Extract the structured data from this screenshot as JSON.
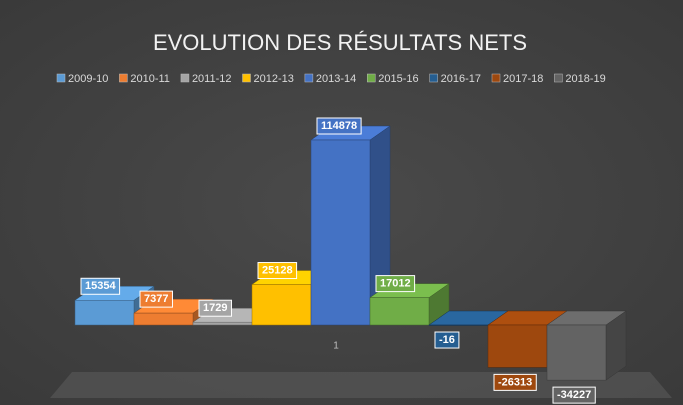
{
  "chart_data": {
    "type": "bar3d",
    "title": "EVOLUTION DES RÉSULTATS NETS",
    "categories": [
      "1"
    ],
    "series": [
      {
        "name": "2009-10",
        "color": "#5b9bd5",
        "values": [
          15354
        ]
      },
      {
        "name": "2010-11",
        "color": "#ed7d31",
        "values": [
          7377
        ]
      },
      {
        "name": "2011-12",
        "color": "#a5a5a5",
        "values": [
          1729
        ]
      },
      {
        "name": "2012-13",
        "color": "#ffc000",
        "values": [
          25128
        ]
      },
      {
        "name": "2013-14",
        "color": "#4472c4",
        "values": [
          114878
        ]
      },
      {
        "name": "2015-16",
        "color": "#70ad47",
        "values": [
          17012
        ]
      },
      {
        "name": "2016-17",
        "color": "#255e91",
        "values": [
          -16
        ]
      },
      {
        "name": "2017-18",
        "color": "#9e480e",
        "values": [
          -26313
        ]
      },
      {
        "name": "2018-19",
        "color": "#636363",
        "values": [
          -34227
        ]
      }
    ],
    "legend": "top"
  }
}
